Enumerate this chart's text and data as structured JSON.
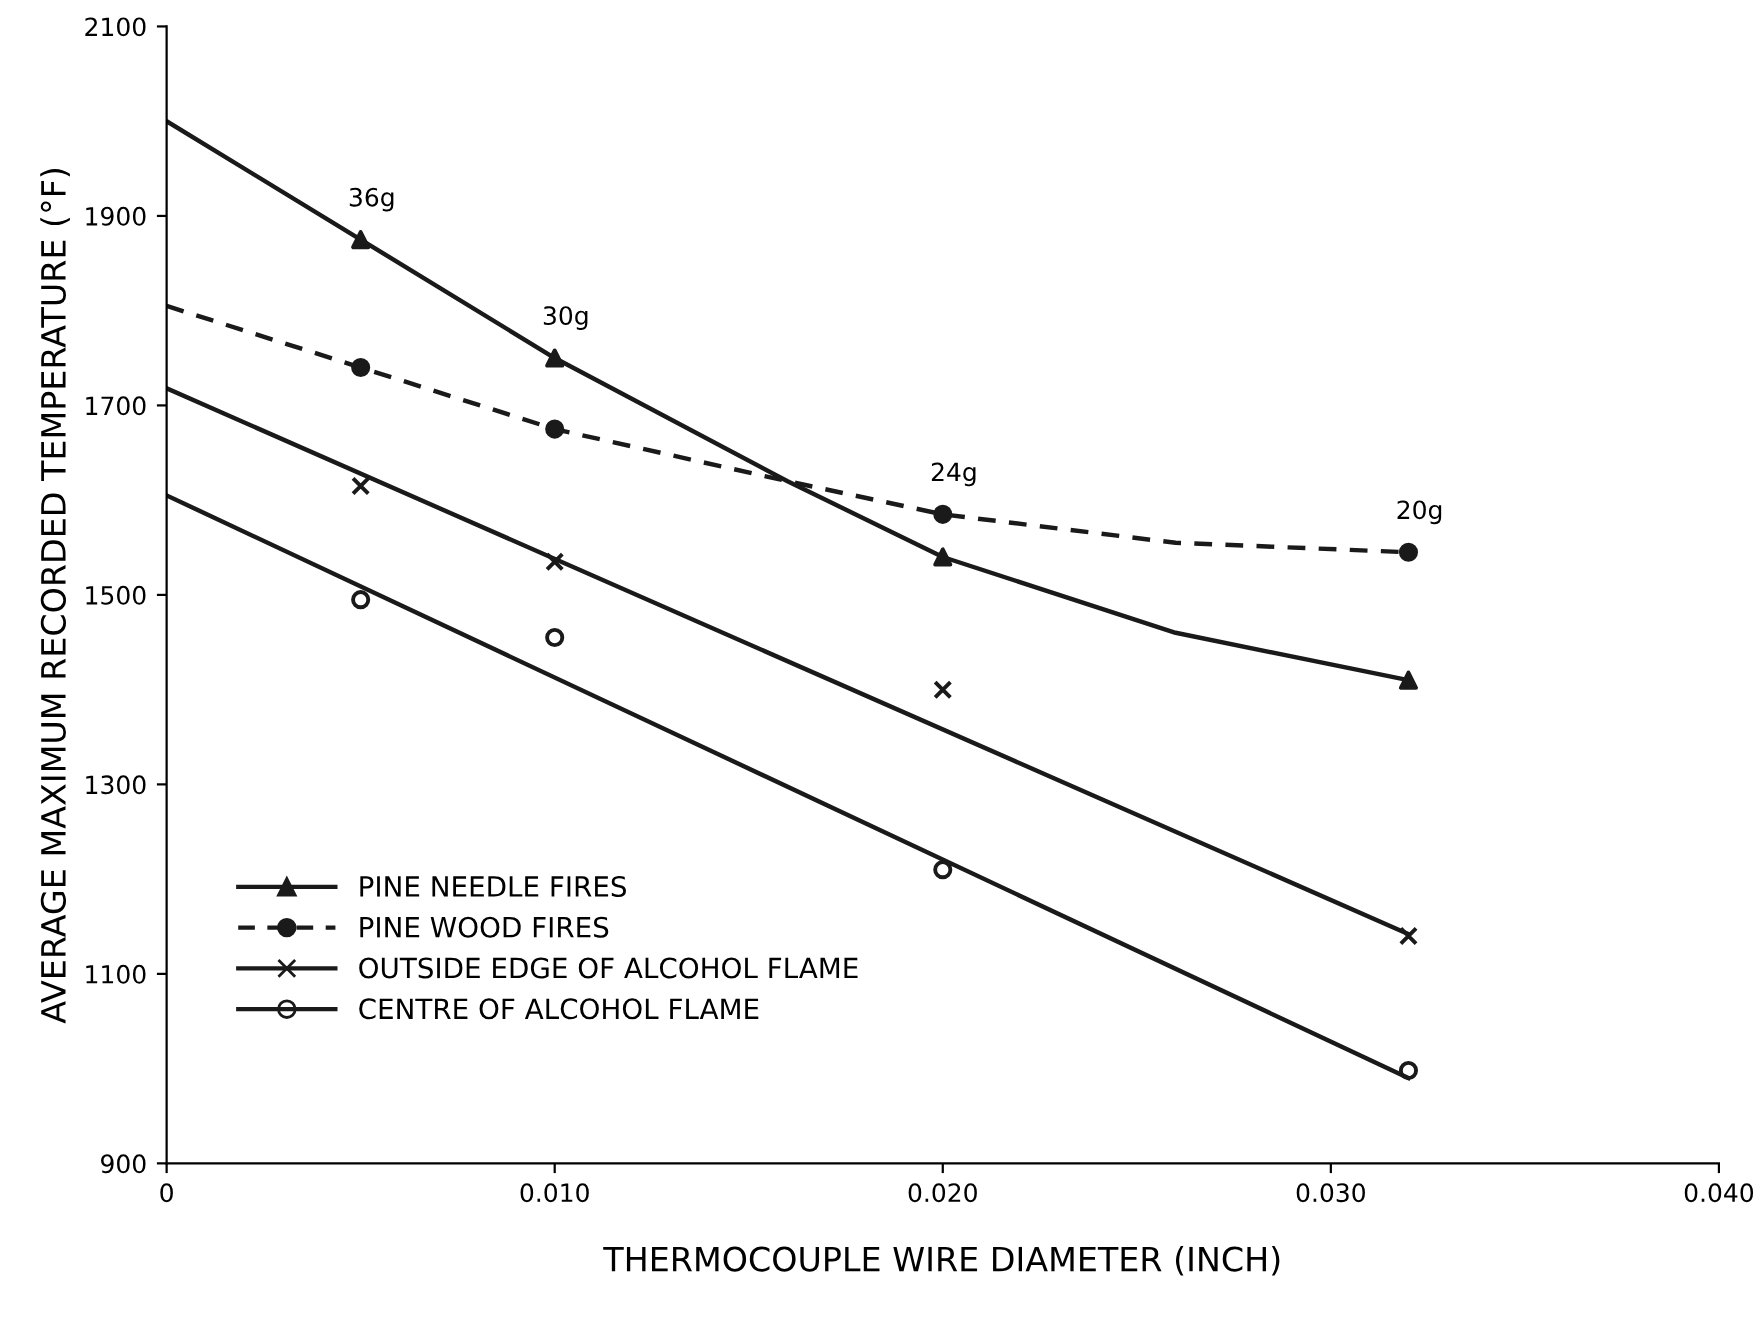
{
  "chart_data": {
    "type": "scatter",
    "xlabel": "THERMOCOUPLE WIRE DIAMETER (INCH)",
    "ylabel": "AVERAGE MAXIMUM RECORDED TEMPERATURE (°F)",
    "xlim": [
      0,
      0.04
    ],
    "ylim": [
      900,
      2100
    ],
    "xticks": [
      0,
      {
        "value": 0.01,
        "label": "0.010"
      },
      {
        "value": 0.02,
        "label": "0.020"
      },
      {
        "value": 0.03,
        "label": "0.030"
      },
      {
        "value": 0.04,
        "label": "0.040"
      }
    ],
    "yticks": [
      900,
      1100,
      1300,
      1500,
      1700,
      1900,
      2100
    ],
    "grid": false,
    "legend": "bottom left",
    "series": [
      {
        "name": "PINE NEEDLE FIRES",
        "marker": "triangle",
        "line_style": "solid",
        "color": "#1a1a1a",
        "x": [
          0.005,
          0.01,
          0.02,
          0.032
        ],
        "values": [
          1875,
          1750,
          1540,
          1410
        ]
      },
      {
        "name": "PINE WOOD FIRES",
        "marker": "circle",
        "line_style": "dashed",
        "color": "#1a1a1a",
        "x": [
          0.005,
          0.01,
          0.02,
          0.032
        ],
        "values": [
          1740,
          1675,
          1585,
          1545
        ]
      },
      {
        "name": "OUTSIDE EDGE OF ALCOHOL FLAME",
        "marker": "cross",
        "line_style": "solid",
        "color": "#1a1a1a",
        "x": [
          0.005,
          0.01,
          0.02,
          0.032
        ],
        "values": [
          1615,
          1535,
          1400,
          1140
        ]
      },
      {
        "name": "CENTRE OF ALCOHOL FLAME",
        "marker": "circle",
        "line_style": "solid",
        "color": "#1a1a1a",
        "x": [
          0.005,
          0.01,
          0.02,
          0.032
        ],
        "values": [
          1495,
          1455,
          1210,
          998
        ]
      },
      {
        "type": "line",
        "line_style": "solid",
        "color": "#1a1a1a",
        "x": [
          0,
          0.005,
          0.01,
          0.016,
          0.02,
          0.026,
          0.032
        ],
        "values": [
          2000,
          1875,
          1750,
          1620,
          1540,
          1460,
          1410
        ]
      },
      {
        "type": "line",
        "line_style": "dashed",
        "color": "#1a1a1a",
        "x": [
          0,
          0.005,
          0.01,
          0.016,
          0.02,
          0.026,
          0.032
        ],
        "values": [
          1805,
          1740,
          1675,
          1620,
          1585,
          1555,
          1545
        ]
      },
      {
        "type": "line",
        "line_style": "solid",
        "color": "#1a1a1a",
        "x": [
          0,
          0.032
        ],
        "values": [
          1718,
          1142
        ]
      },
      {
        "type": "line",
        "line_style": "solid",
        "color": "#1a1a1a",
        "x": [
          0,
          0.032
        ],
        "values": [
          1605,
          990
        ]
      }
    ],
    "annotations": [
      {
        "text": "36g",
        "x": 0.005,
        "y": 1875
      },
      {
        "text": "30g",
        "x": 0.01,
        "y": 1750
      },
      {
        "text": "24g",
        "x": 0.02,
        "y": 1585
      },
      {
        "text": "20g",
        "x": 0.032,
        "y": 1545
      }
    ]
  }
}
